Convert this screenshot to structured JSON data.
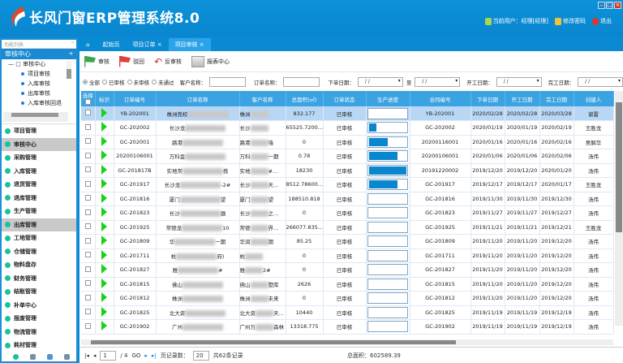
{
  "app": {
    "title": "长风门窗ERP管理系统8.0",
    "current_user": "当前用户：经理[经理]",
    "change_password": "修改密码",
    "logout": "退出"
  },
  "sidebar": {
    "header": "功能列表",
    "section": "审核中心",
    "tree_root": "审核中心",
    "tree_items": [
      "项目审核",
      "入库审核",
      "出库审核",
      "入库审核回退"
    ],
    "menu": [
      "项目管理",
      "审核中心",
      "采购管理",
      "入库管理",
      "退货管理",
      "退库管理",
      "生产管理",
      "出库管理",
      "工地管理",
      "仓储管理",
      "物料盘存",
      "财务管理",
      "结账管理",
      "补单中心",
      "报废管理",
      "物流管理",
      "耗材管理"
    ],
    "selected": [
      "审核中心",
      "出库管理"
    ]
  },
  "tabs": [
    {
      "label": "起始页"
    },
    {
      "label": "项目订单"
    },
    {
      "label": "项目审核",
      "active": true
    }
  ],
  "toolbar": {
    "audit": "审核",
    "reject": "驳回",
    "unaudit": "反审核",
    "report": "报表中心"
  },
  "filters": {
    "radios": [
      "全部",
      "已审核",
      "未审核",
      "未通过"
    ],
    "selected": "全部",
    "customer_label": "客户名称：",
    "order_label": "订单名称：",
    "order_date_label": "下单日期：",
    "to_label": "至",
    "start_date_label": "开工日期：",
    "finish_date_label": "完工日期：",
    "date_placeholder": "/  /"
  },
  "table": {
    "headers": [
      "选择",
      "标识",
      "订单编号",
      "订单名称",
      "客户名称",
      "总面积(㎡)",
      "订单状态",
      "生产进度",
      "合同编号",
      "下单日期",
      "开工日期",
      "完工日期",
      "创建人"
    ],
    "rows": [
      [
        "YB-202001",
        "株洲莞校",
        "",
        "株洲",
        "",
        "832.177",
        "已审核",
        0,
        "YB-202001",
        "2020/02/28",
        "2020/02/28",
        "2020/03/28",
        "谌雷"
      ],
      [
        "GC-202002",
        "长沙龙",
        "",
        "长沙",
        "",
        "65525.7200...",
        "已审核",
        0.2,
        "GC-202002",
        "2020/01/19",
        "2020/01/19",
        "2020/02/19",
        "王胜龙"
      ],
      [
        "GC-202001",
        "路港",
        "",
        "路港",
        "墙",
        "0",
        "已审核",
        0.5,
        "20200116001",
        "2020/01/16",
        "2020/01/16",
        "2020/02/16",
        "吴解华"
      ],
      [
        "20200106001",
        "万科金",
        "",
        "万科",
        "一期",
        "0.78",
        "已审核",
        0.75,
        "20200106001",
        "2020/01/06",
        "2020/01/06",
        "2020/02/06",
        "汤伟"
      ],
      [
        "GC-201817B",
        "实地常",
        "栋",
        "实地",
        "#...",
        "18230",
        "已审核",
        1,
        "20191220002",
        "2019/12/20",
        "2019/12/20",
        "2020/01/20",
        "汤伟"
      ],
      [
        "GC-201917",
        "长沙龙",
        "-2#",
        "长沙",
        "天...",
        "8512.78600...",
        "已审核",
        0.75,
        "GC-201917",
        "2019/12/17",
        "2019/12/17",
        "2020/01/17",
        "王胜龙"
      ],
      [
        "GC-201816",
        "厦门",
        "望",
        "厦门",
        "望",
        "188510.818",
        "已审核",
        0,
        "GC-201816",
        "2019/11/30",
        "2019/11/30",
        "2019/12/30",
        "汤伟"
      ],
      [
        "GC-201823",
        "长沙",
        "器",
        "长沙",
        "之...",
        "0",
        "已审核",
        0,
        "GC-201823",
        "2019/11/27",
        "2019/11/27",
        "2019/12/27",
        "汤伟"
      ],
      [
        "GC-201925",
        "常德龙",
        "10",
        "常德",
        "界...",
        "266077.835...",
        "已审核",
        0,
        "GC-201925",
        "2019/11/21",
        "2019/11/21",
        "2019/12/21",
        "王胜龙"
      ],
      [
        "GC-201809",
        "华",
        "一期",
        "华润",
        "期",
        "85.25",
        "已审核",
        0,
        "GC-201809",
        "2019/11/20",
        "2019/11/20",
        "2019/12/20",
        "汤伟"
      ],
      [
        "GC-201711",
        "杭",
        "府)",
        "杭",
        "",
        "0",
        "已审核",
        0,
        "GC-201711",
        "2019/11/20",
        "2019/11/20",
        "2019/12/20",
        "汤伟"
      ],
      [
        "GC-201827",
        "雅",
        "#",
        "雅",
        "2#",
        "0",
        "已审核",
        0,
        "GC-201827",
        "2019/11/20",
        "2019/11/20",
        "2019/12/20",
        "汤伟"
      ],
      [
        "GC-201815",
        "佛山",
        "",
        "佛山",
        "墅库",
        "2626",
        "已审核",
        0,
        "GC-201815",
        "2019/11/20",
        "2019/11/20",
        "2019/12/20",
        "汤伟"
      ],
      [
        "GC-201812",
        "株洲",
        "",
        "株洲",
        "未来",
        "0",
        "已审核",
        0,
        "GC-201812",
        "2019/11/20",
        "2019/11/20",
        "2019/12/20",
        "汤伟"
      ],
      [
        "GC-201825",
        "北大资",
        "",
        "北大资",
        "天...",
        "10440",
        "已审核",
        0,
        "GC-201825",
        "2019/11/19",
        "2019/11/19",
        "2019/12/19",
        "汤伟"
      ],
      [
        "GC-201902",
        "广州",
        "",
        "广州万",
        "森林",
        "13318.775",
        "已审核",
        0,
        "GC-201902",
        "2019/11/19",
        "2019/11/19",
        "2019/12/19",
        "汤伟"
      ]
    ]
  },
  "pager": {
    "page": "1",
    "of": "/ 4",
    "page_size_label": "页记录数：",
    "page_size": "20",
    "total_records": "共62条记录",
    "total_area": "总面积：602589.39"
  },
  "colors": {
    "brand": "#0a8ad2",
    "header": "#3ba3e2",
    "progress": "#0a86cf",
    "flag": "#16d21a"
  }
}
